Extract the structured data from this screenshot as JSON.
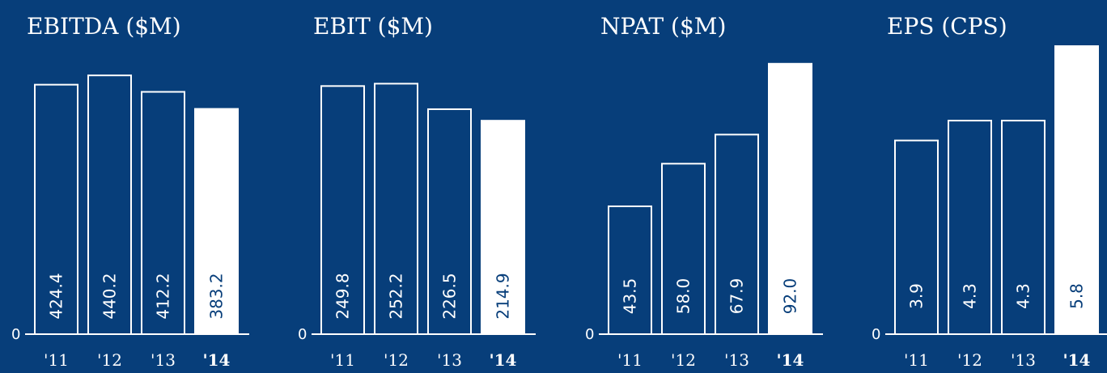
{
  "colors": {
    "background": "#073e7a",
    "bar_outline": "#ffffff",
    "highlight_bar": "#ffffff"
  },
  "chart_data": [
    {
      "type": "bar",
      "title": "EBITDA ($M)",
      "categories": [
        "'11",
        "'12",
        "'13",
        "'14"
      ],
      "values": [
        424.4,
        440.2,
        412.2,
        383.2
      ],
      "value_labels": [
        "424.4",
        "440.2",
        "412.2",
        "383.2"
      ],
      "highlight_index": 3,
      "zero_label": "0",
      "ylim": [
        0,
        490
      ]
    },
    {
      "type": "bar",
      "title": "EBIT ($M)",
      "categories": [
        "'11",
        "'12",
        "'13",
        "'14"
      ],
      "values": [
        249.8,
        252.2,
        226.5,
        214.9
      ],
      "value_labels": [
        "249.8",
        "252.2",
        "226.5",
        "214.9"
      ],
      "highlight_index": 3,
      "zero_label": "0",
      "ylim": [
        0,
        290
      ]
    },
    {
      "type": "bar",
      "title": "NPAT ($M)",
      "categories": [
        "'11",
        "'12",
        "'13",
        "'14"
      ],
      "values": [
        43.5,
        58.0,
        67.9,
        92.0
      ],
      "value_labels": [
        "43.5",
        "58.0",
        "67.9",
        "92.0"
      ],
      "highlight_index": 3,
      "zero_label": "0",
      "ylim": [
        0,
        98
      ]
    },
    {
      "type": "bar",
      "title": "EPS (CPS)",
      "categories": [
        "'11",
        "'12",
        "'13",
        "'14"
      ],
      "values": [
        3.9,
        4.3,
        4.3,
        5.8
      ],
      "value_labels": [
        "3.9",
        "4.3",
        "4.3",
        "5.8"
      ],
      "highlight_index": 3,
      "zero_label": "0",
      "ylim": [
        0,
        5.8
      ]
    }
  ]
}
